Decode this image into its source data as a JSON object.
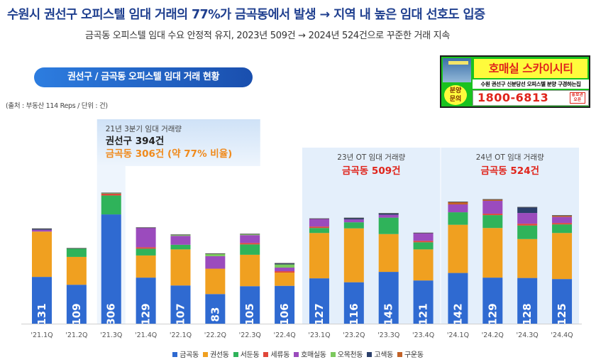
{
  "header": {
    "headline": "수원시 권선구 오피스텔 임대 거래의 77%가 금곡동에서 발생 → 지역 내 높은 임대 선호도 입증",
    "subline": "금곡동 오피스텔 임대 수요 안정적 유지, 2023년 509건 → 2024년 524건으로 꾸준한 거래 지속",
    "pill": "권선구 / 금곡동 오피스텔 임대 거래 현황",
    "source": "(출처 : 부동산 114 Reps / 단위 : 건)"
  },
  "ad": {
    "title": "호매실 스카이시티",
    "badge_line1": "분양",
    "badge_line2": "문의",
    "desc": "수원 권선구 신분당선 오피스텔 분양 구경하는집",
    "phone": "1800-6813",
    "mini": "홍보관 오픈"
  },
  "colors": {
    "금곡동": "#2f6ad1",
    "권선동": "#f0a020",
    "서둔동": "#2fb35a",
    "세류동": "#e0473a",
    "호매실동": "#9b4bbd",
    "오목천동": "#7cc95e",
    "고색동": "#2b3f6b",
    "구운동": "#c26228",
    "highlight_bg": "#e4effb",
    "accent_red": "#e0241b",
    "accent_orange": "#f08a1c"
  },
  "chart_data": {
    "type": "bar",
    "stacked": true,
    "categories": [
      "'21.1Q",
      "'21.2Q",
      "'21.3Q",
      "'21.4Q",
      "'22.1Q",
      "'22.2Q",
      "'22.3Q",
      "'22.4Q",
      "'23.1Q",
      "'23.2Q",
      "'23.3Q",
      "'23.4Q",
      "'24.1Q",
      "'24.2Q",
      "'24.3Q",
      "'24.4Q"
    ],
    "series": [
      {
        "name": "금곡동",
        "values": [
          131,
          109,
          306,
          129,
          107,
          83,
          105,
          106,
          127,
          116,
          145,
          121,
          142,
          129,
          128,
          125
        ]
      },
      {
        "name": "권선동",
        "values": [
          127,
          78,
          0,
          62,
          101,
          71,
          88,
          37,
          127,
          151,
          106,
          87,
          135,
          139,
          109,
          129
        ]
      },
      {
        "name": "서둔동",
        "values": [
          0,
          24,
          53,
          19,
          13,
          0,
          29,
          0,
          14,
          17,
          46,
          20,
          35,
          36,
          38,
          24
        ]
      },
      {
        "name": "세류동",
        "values": [
          0,
          0,
          5,
          4,
          0,
          0,
          4,
          4,
          4,
          0,
          0,
          4,
          0,
          4,
          5,
          4
        ]
      },
      {
        "name": "호매실동",
        "values": [
          5,
          0,
          0,
          55,
          25,
          35,
          22,
          10,
          22,
          8,
          8,
          22,
          22,
          36,
          30,
          17
        ]
      },
      {
        "name": "오목천동",
        "values": [
          0,
          0,
          2,
          0,
          3,
          7,
          3,
          9,
          0,
          0,
          0,
          0,
          0,
          0,
          0,
          0
        ]
      },
      {
        "name": "고색동",
        "values": [
          3,
          0,
          0,
          0,
          0,
          0,
          0,
          3,
          0,
          4,
          4,
          0,
          0,
          0,
          16,
          0
        ]
      },
      {
        "name": "구운동",
        "values": [
          0,
          0,
          0,
          0,
          0,
          0,
          0,
          0,
          0,
          0,
          0,
          0,
          7,
          4,
          0,
          4
        ]
      }
    ],
    "bar_labels": [
      "131",
      "109",
      "306",
      "129",
      "107",
      "83",
      "105",
      "106",
      "127",
      "116",
      "145",
      "121",
      "142",
      "129",
      "128",
      "125"
    ],
    "highlight_groups": [
      {
        "start": 8,
        "end": 11,
        "caption": "23년 OT 임대 거래량",
        "value_label": "금곡동 509건"
      },
      {
        "start": 12,
        "end": 15,
        "caption": "24년 OT 임대 거래량",
        "value_label": "금곡동 524건"
      }
    ],
    "annotation_q3": {
      "category_index": 2,
      "line1": "21년 3분기 임대 거래량",
      "line2": "권선구 394건",
      "line3": "금곡동 306건 (약 77% 비율)"
    },
    "legend_position": "bottom",
    "grid": false,
    "ylim": [
      0,
      420
    ]
  }
}
